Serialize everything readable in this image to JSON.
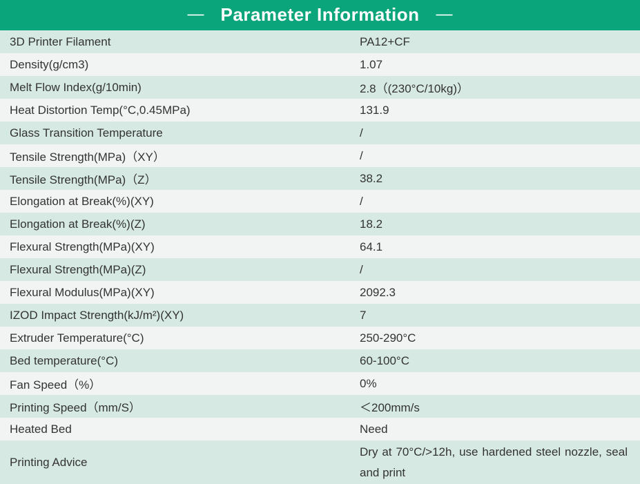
{
  "header": {
    "dash": "—",
    "title": "Parameter Information"
  },
  "table": {
    "rows": [
      {
        "label": "3D Printer Filament",
        "value": "PA12+CF"
      },
      {
        "label": "Density(g/cm3)",
        "value": "1.07"
      },
      {
        "label": "Melt Flow Index(g/10min)",
        "value": "2.8（(230°C/10kg)）"
      },
      {
        "label": "Heat Distortion Temp(°C,0.45MPa)",
        "value": "131.9"
      },
      {
        "label": "Glass Transition Temperature",
        "value": "/"
      },
      {
        "label": "Tensile Strength(MPa)（XY）",
        "value": "/"
      },
      {
        "label": "Tensile Strength(MPa)（Z）",
        "value": "38.2"
      },
      {
        "label": "Elongation at Break(%)(XY)",
        "value": "/"
      },
      {
        "label": "Elongation at Break(%)(Z)",
        "value": "18.2"
      },
      {
        "label": "Flexural Strength(MPa)(XY)",
        "value": "64.1"
      },
      {
        "label": "Flexural Strength(MPa)(Z)",
        "value": "/"
      },
      {
        "label": "Flexural Modulus(MPa)(XY)",
        "value": "2092.3"
      },
      {
        "label": "IZOD Impact Strength(kJ/m²)(XY)",
        "value": "7"
      },
      {
        "label": "Extruder Temperature(°C)",
        "value": "250-290°C"
      },
      {
        "label": "Bed temperature(°C)",
        "value": "60-100°C"
      },
      {
        "label": "Fan Speed（%）",
        "value": "0%"
      },
      {
        "label": "Printing Speed（mm/S）",
        "value": "＜200mm/s"
      },
      {
        "label": "Heated Bed",
        "value": "Need"
      },
      {
        "label": "Printing Advice",
        "value": "Dry at 70°C/>12h, use hardened steel nozzle, seal and print",
        "multiline": true
      }
    ]
  },
  "colors": {
    "header_bg": "#0aa57a",
    "header_text": "#ffffff",
    "row_green": "#d6e9e2",
    "row_gray": "#f2f3f3",
    "text": "#333333"
  }
}
